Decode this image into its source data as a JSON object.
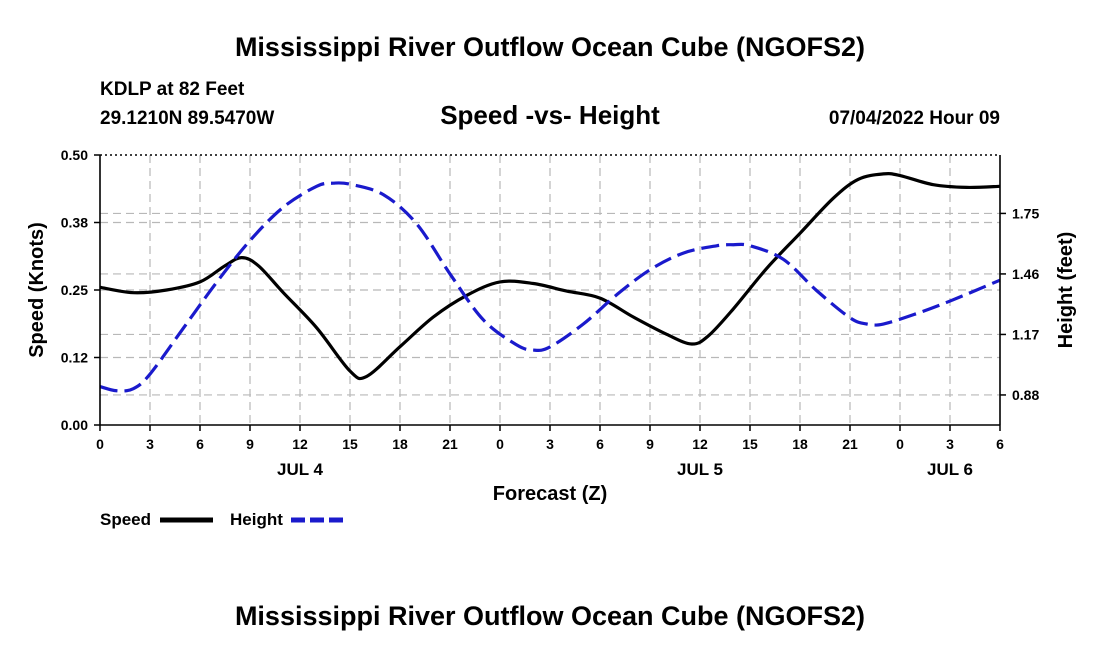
{
  "chart_data": {
    "type": "line",
    "title": "Mississippi River Outflow Ocean Cube (NGOFS2)",
    "subtitle": "Speed -vs- Height",
    "station": "KDLP at 82 Feet",
    "location": "29.1210N  89.5470W",
    "datetime": "07/04/2022 Hour 09",
    "footer_title": "Mississippi River Outflow Ocean Cube (NGOFS2)",
    "xlabel": "Forecast (Z)",
    "ylabel_left": "Speed (Knots)",
    "ylabel_right": "Height (feet)",
    "x_range": [
      0,
      54
    ],
    "x_ticks": [
      0,
      3,
      6,
      9,
      12,
      15,
      18,
      21,
      24,
      27,
      30,
      33,
      36,
      39,
      42,
      45,
      48,
      51,
      54
    ],
    "x_tick_labels": [
      "0",
      "3",
      "6",
      "9",
      "12",
      "15",
      "18",
      "21",
      "0",
      "3",
      "6",
      "9",
      "12",
      "15",
      "18",
      "21",
      "0",
      "3",
      "6"
    ],
    "day_labels": [
      {
        "label": "JUL 4",
        "x": 12
      },
      {
        "label": "JUL 5",
        "x": 36
      },
      {
        "label": "JUL 6",
        "x": 51
      }
    ],
    "ylim_left": [
      0,
      0.5
    ],
    "y_ticks_left": [
      0,
      0.125,
      0.25,
      0.375,
      0.5
    ],
    "y_tick_labels_left": [
      "0.00",
      "0.12",
      "0.25",
      "0.38",
      "0.50"
    ],
    "ylim_right": [
      0.736,
      2.03
    ],
    "y_ticks_right": [
      0.88,
      1.17,
      1.46,
      1.75
    ],
    "y_tick_labels_right": [
      "0.88",
      "1.17",
      "1.46",
      "1.75"
    ],
    "legend": {
      "position": "bottom-left",
      "entries": [
        {
          "label": "Speed",
          "color": "#000000",
          "style": "solid"
        },
        {
          "label": "Height",
          "color": "#1a1acc",
          "style": "dashed"
        }
      ]
    },
    "series": [
      {
        "name": "Speed",
        "axis": "left",
        "color": "#000000",
        "style": "solid",
        "x": [
          0,
          2,
          4,
          6,
          7.5,
          8.5,
          9.5,
          11,
          13,
          15,
          16,
          18,
          20,
          22,
          24,
          26,
          28,
          30,
          32,
          34,
          35.5,
          36.5,
          38,
          40,
          42,
          44,
          45.5,
          47,
          48,
          50,
          52,
          54
        ],
        "values": [
          0.255,
          0.245,
          0.25,
          0.265,
          0.295,
          0.31,
          0.295,
          0.245,
          0.18,
          0.1,
          0.09,
          0.145,
          0.2,
          0.24,
          0.265,
          0.262,
          0.248,
          0.235,
          0.2,
          0.168,
          0.15,
          0.165,
          0.215,
          0.29,
          0.355,
          0.42,
          0.455,
          0.465,
          0.462,
          0.445,
          0.44,
          0.442
        ]
      },
      {
        "name": "Height",
        "axis": "right",
        "color": "#1a1acc",
        "style": "dashed",
        "x": [
          0,
          1,
          2,
          3,
          5,
          7,
          9,
          11,
          13,
          14,
          15,
          17,
          19,
          21,
          23,
          25,
          26,
          27,
          29,
          31,
          33,
          35,
          37,
          38,
          39,
          41,
          43,
          45,
          46,
          47,
          49,
          51,
          54
        ],
        "values": [
          0.92,
          0.9,
          0.91,
          0.98,
          1.2,
          1.42,
          1.62,
          1.78,
          1.88,
          1.895,
          1.89,
          1.84,
          1.7,
          1.46,
          1.24,
          1.12,
          1.095,
          1.11,
          1.22,
          1.36,
          1.48,
          1.56,
          1.595,
          1.6,
          1.595,
          1.53,
          1.38,
          1.25,
          1.22,
          1.22,
          1.27,
          1.33,
          1.43
        ]
      }
    ]
  }
}
